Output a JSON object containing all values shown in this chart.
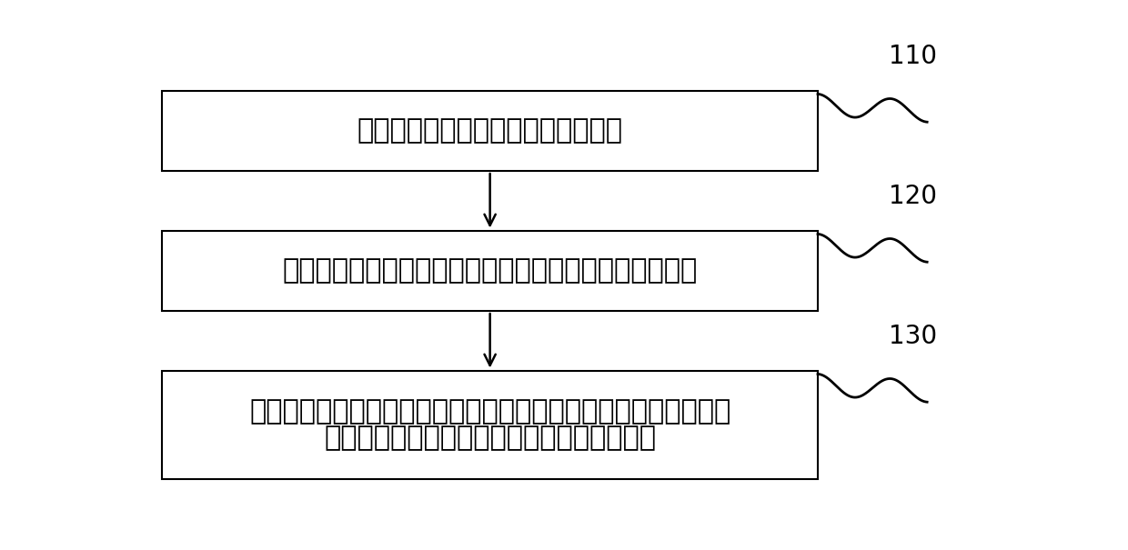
{
  "background_color": "#ffffff",
  "boxes": [
    {
      "step_num": "110",
      "lines": [
        "对风电场输出功率预测误差进行估计"
      ]
    },
    {
      "step_num": "120",
      "lines": [
        "根据所述预测误差利用蒙特卡洛模拟进行风电场场景生成"
      ]
    },
    {
      "step_num": "130",
      "lines": [
        "根据所述风电场场景生成对应的风电功率，对热网蓄热的风电与热",
        "电联产系统中的热电联产机组的出功进行调整"
      ]
    }
  ],
  "box_edge_color": "#000000",
  "box_face_color": "#ffffff",
  "arrow_color": "#000000",
  "step_num_color": "#000000",
  "text_color": "#000000",
  "font_size": 22,
  "step_num_font_size": 20,
  "wavy_color": "#000000"
}
